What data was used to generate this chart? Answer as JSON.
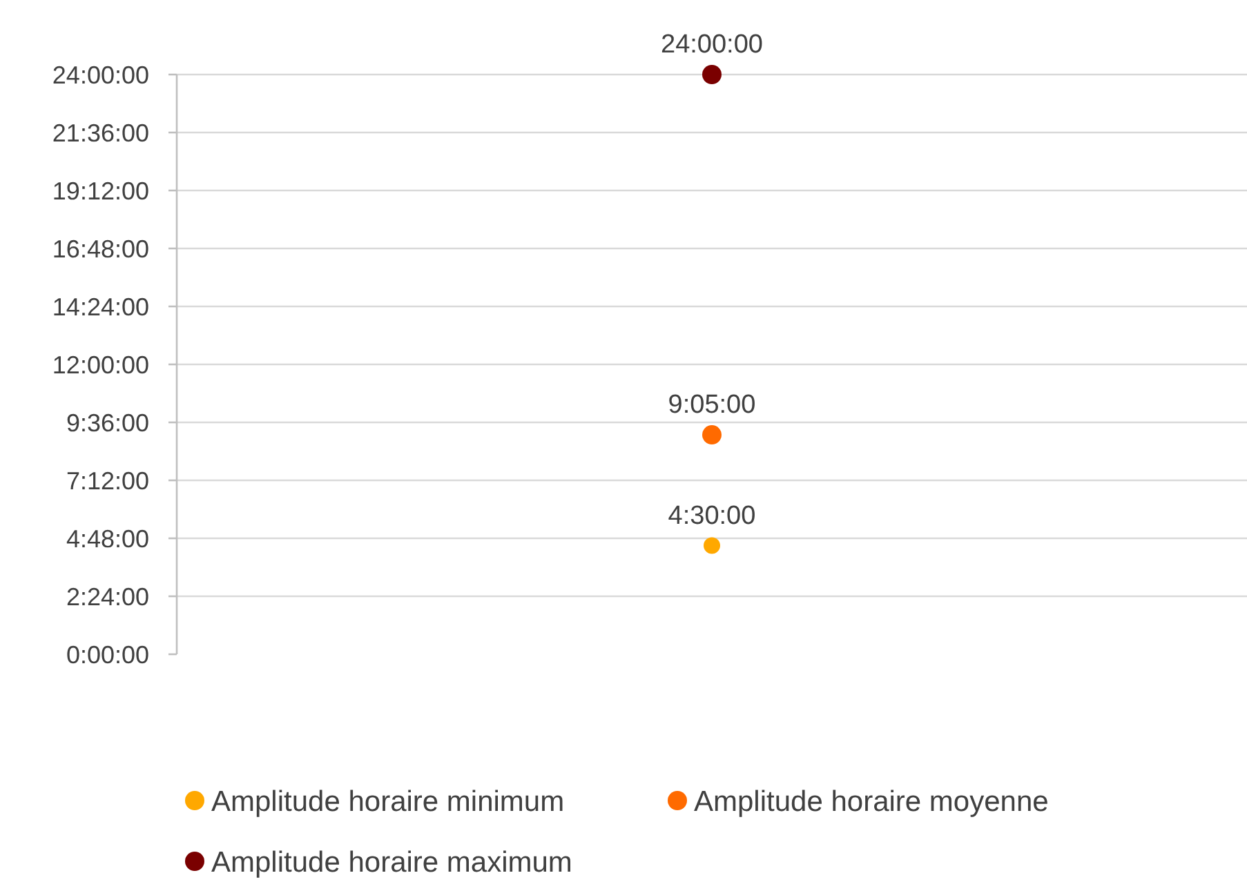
{
  "chart_data": {
    "type": "scatter",
    "categories": [
      null
    ],
    "series": [
      {
        "name": "Amplitude horaire minimum",
        "color": "#ffa800",
        "values": [
          4.5
        ],
        "value_labels": [
          "4:30:00"
        ]
      },
      {
        "name": "Amplitude horaire moyenne",
        "color": "#ff6a00",
        "values": [
          9.0833
        ],
        "value_labels": [
          "9:05:00"
        ]
      },
      {
        "name": "Amplitude horaire maximum",
        "color": "#7a0000",
        "values": [
          24
        ],
        "value_labels": [
          "24:00:00"
        ]
      }
    ],
    "ylim": [
      0,
      24
    ],
    "yticks": [
      {
        "value": 0,
        "label": "0:00:00"
      },
      {
        "value": 2.4,
        "label": "2:24:00"
      },
      {
        "value": 4.8,
        "label": "4:48:00"
      },
      {
        "value": 7.2,
        "label": "7:12:00"
      },
      {
        "value": 9.6,
        "label": "9:36:00"
      },
      {
        "value": 12,
        "label": "12:00:00"
      },
      {
        "value": 14.4,
        "label": "14:24:00"
      },
      {
        "value": 16.8,
        "label": "16:48:00"
      },
      {
        "value": 19.2,
        "label": "19:12:00"
      },
      {
        "value": 21.6,
        "label": "21:36:00"
      },
      {
        "value": 24,
        "label": "24:00:00"
      }
    ],
    "grid": "y",
    "legend": "bottom",
    "marker": "circle"
  }
}
